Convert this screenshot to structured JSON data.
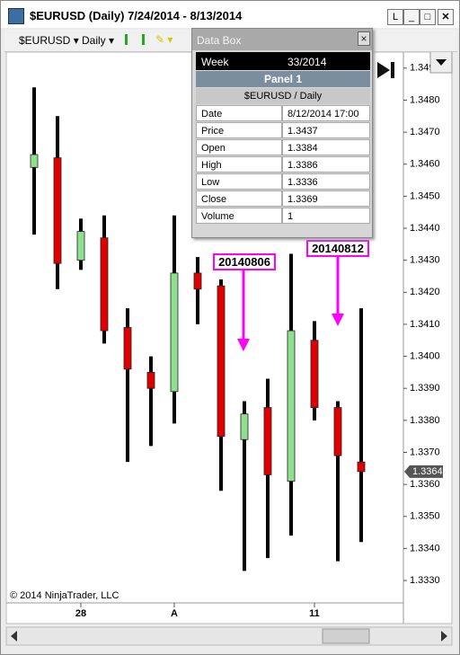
{
  "window": {
    "title": "$EURUSD (Daily)  7/24/2014 - 8/13/2014",
    "layout_button": "L"
  },
  "toolbar": {
    "instrument": "$EURUSD",
    "period": "Daily"
  },
  "chart_data": {
    "type": "candlestick",
    "categories": [
      null,
      null,
      "28",
      null,
      null,
      null,
      "A",
      null,
      null,
      null,
      null,
      null,
      "11",
      null,
      null
    ],
    "series": {
      "open": [
        1.3459,
        1.3462,
        1.343,
        1.3437,
        1.3409,
        1.3395,
        1.3389,
        1.3426,
        1.3422,
        1.3374,
        1.3384,
        1.3361,
        1.3405,
        1.3384,
        1.3367
      ],
      "high": [
        1.3484,
        1.3475,
        1.3443,
        1.3444,
        1.3415,
        1.34,
        1.3444,
        1.3431,
        1.3424,
        1.3386,
        1.3393,
        1.3432,
        1.3411,
        1.3386,
        1.3415
      ],
      "low": [
        1.3438,
        1.3421,
        1.3427,
        1.3404,
        1.3367,
        1.3372,
        1.3379,
        1.341,
        1.3358,
        1.3333,
        1.3337,
        1.3344,
        1.338,
        1.3336,
        1.3342
      ],
      "close": [
        1.3463,
        1.3429,
        1.3439,
        1.3408,
        1.3396,
        1.339,
        1.3426,
        1.3421,
        1.3375,
        1.3382,
        1.3363,
        1.3408,
        1.3384,
        1.3369,
        1.3364
      ]
    },
    "up_color": "#8ee08e",
    "down_color": "#e00000",
    "ylim": [
      1.3323,
      1.3495
    ],
    "yticks": [
      {
        "value": 1.349,
        "label": "1.3490"
      },
      {
        "value": 1.348,
        "label": "1.3480"
      },
      {
        "value": 1.347,
        "label": "1.3470"
      },
      {
        "value": 1.346,
        "label": "1.3460"
      },
      {
        "value": 1.345,
        "label": "1.3450"
      },
      {
        "value": 1.344,
        "label": "1.3440"
      },
      {
        "value": 1.343,
        "label": "1.3430"
      },
      {
        "value": 1.342,
        "label": "1.3420"
      },
      {
        "value": 1.341,
        "label": "1.3410"
      },
      {
        "value": 1.34,
        "label": "1.3400"
      },
      {
        "value": 1.339,
        "label": "1.3390"
      },
      {
        "value": 1.338,
        "label": "1.3380"
      },
      {
        "value": 1.337,
        "label": "1.3370"
      },
      {
        "value": 1.336,
        "label": "1.3360"
      },
      {
        "value": 1.335,
        "label": "1.3350"
      },
      {
        "value": 1.334,
        "label": "1.3340"
      },
      {
        "value": 1.333,
        "label": "1.3330"
      }
    ],
    "last_price": {
      "value": 1.3364,
      "label": "1.3364"
    },
    "annotations": [
      "20140806",
      "20140812"
    ],
    "copyright": "© 2014 NinjaTrader, LLC"
  },
  "data_box": {
    "title": "Data Box",
    "week": [
      "Week",
      "33/2014"
    ],
    "panel": "Panel 1",
    "instrument": "$EURUSD / Daily",
    "rows": [
      [
        "Date",
        "8/12/2014 17:00"
      ],
      [
        "Price",
        "1.3437"
      ],
      [
        "Open",
        "1.3384"
      ],
      [
        "High",
        "1.3386"
      ],
      [
        "Low",
        "1.3336"
      ],
      [
        "Close",
        "1.3369"
      ],
      [
        "Volume",
        "1"
      ]
    ]
  }
}
